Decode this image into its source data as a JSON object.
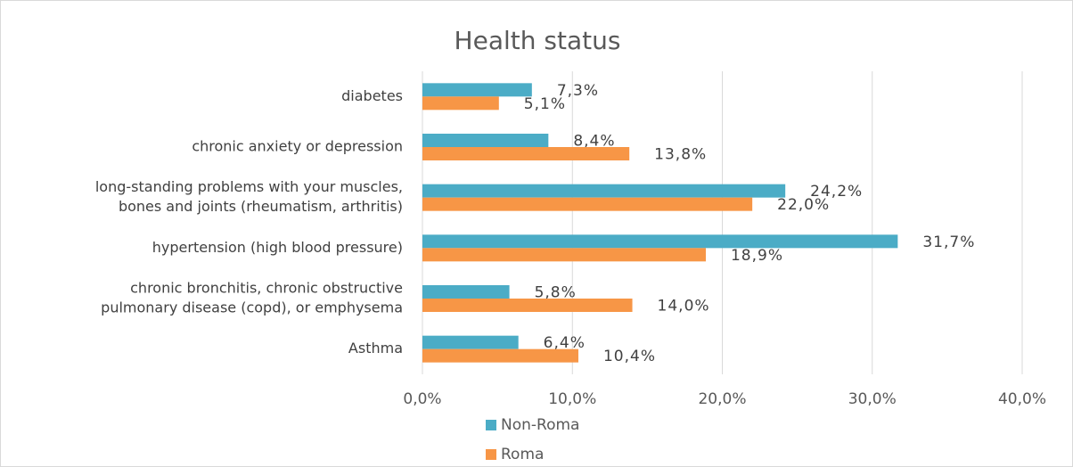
{
  "chart_data": {
    "type": "hbar",
    "title": "Health status",
    "categories": [
      [
        "diabetes"
      ],
      [
        "chronic anxiety or depression"
      ],
      [
        "long-standing problems with your muscles,",
        "bones and joints (rheumatism, arthritis)"
      ],
      [
        "hypertension (high blood pressure)"
      ],
      [
        "chronic bronchitis, chronic obstructive",
        "pulmonary disease (copd), or emphysema"
      ],
      [
        "Asthma"
      ]
    ],
    "series": [
      {
        "name": "Non-Roma",
        "color": "#4bacc6",
        "values": [
          7.3,
          8.4,
          24.2,
          31.7,
          5.8,
          6.4
        ],
        "value_labels": [
          "7,3%",
          "8,4%",
          "24,2%",
          "31,7%",
          "5,8%",
          "6,4%"
        ]
      },
      {
        "name": "Roma",
        "color": "#f79646",
        "values": [
          5.1,
          13.8,
          22.0,
          18.9,
          14.0,
          10.4
        ],
        "value_labels": [
          "5,1%",
          "13,8%",
          "22,0%",
          "18,9%",
          "14,0%",
          "10,4%"
        ]
      }
    ],
    "xlim": [
      0,
      40
    ],
    "xticks": [
      {
        "value": 0,
        "label": "0,0%"
      },
      {
        "value": 10,
        "label": "10,0%"
      },
      {
        "value": 20,
        "label": "20,0%"
      },
      {
        "value": 30,
        "label": "30,0%"
      },
      {
        "value": 40,
        "label": "40,0%"
      }
    ],
    "grid": true,
    "legend": "bottom"
  }
}
